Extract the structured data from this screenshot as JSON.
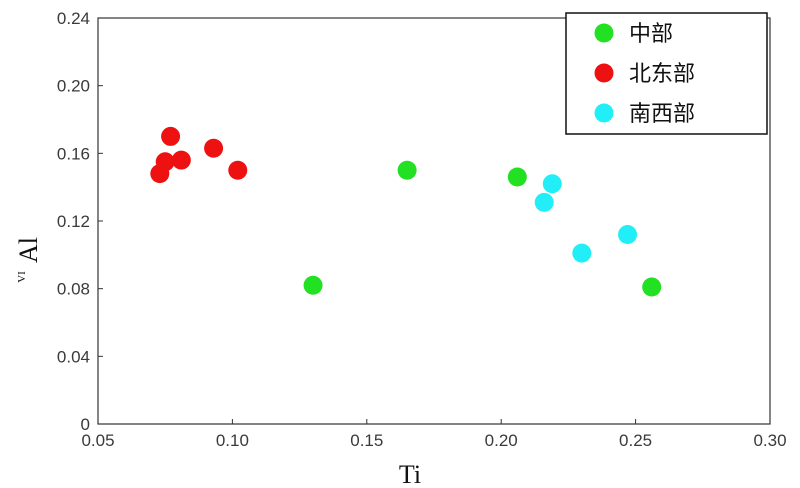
{
  "chart_data": {
    "type": "scatter",
    "xlabel": "Ti",
    "ylabel": "Al",
    "ylabel_superscript": "VI",
    "xlim": [
      0.05,
      0.3
    ],
    "ylim": [
      0,
      0.24
    ],
    "x_ticks": [
      "0.05",
      "0.10",
      "0.15",
      "0.20",
      "0.25",
      "0.30"
    ],
    "y_ticks": [
      "0",
      "0.04",
      "0.08",
      "0.12",
      "0.16",
      "0.20",
      "0.24"
    ],
    "legend_position": "top-right",
    "grid": false,
    "series": [
      {
        "name": "中部",
        "color": "#22e022",
        "points": [
          {
            "x": 0.13,
            "y": 0.082
          },
          {
            "x": 0.165,
            "y": 0.15
          },
          {
            "x": 0.206,
            "y": 0.146
          },
          {
            "x": 0.256,
            "y": 0.081
          }
        ]
      },
      {
        "name": "北东部",
        "color": "#ee1111",
        "points": [
          {
            "x": 0.073,
            "y": 0.148
          },
          {
            "x": 0.075,
            "y": 0.155
          },
          {
            "x": 0.077,
            "y": 0.17
          },
          {
            "x": 0.081,
            "y": 0.156
          },
          {
            "x": 0.093,
            "y": 0.163
          },
          {
            "x": 0.102,
            "y": 0.15
          }
        ]
      },
      {
        "name": "南西部",
        "color": "#22eef8",
        "points": [
          {
            "x": 0.216,
            "y": 0.131
          },
          {
            "x": 0.219,
            "y": 0.142
          },
          {
            "x": 0.23,
            "y": 0.101
          },
          {
            "x": 0.247,
            "y": 0.112
          }
        ]
      }
    ]
  }
}
